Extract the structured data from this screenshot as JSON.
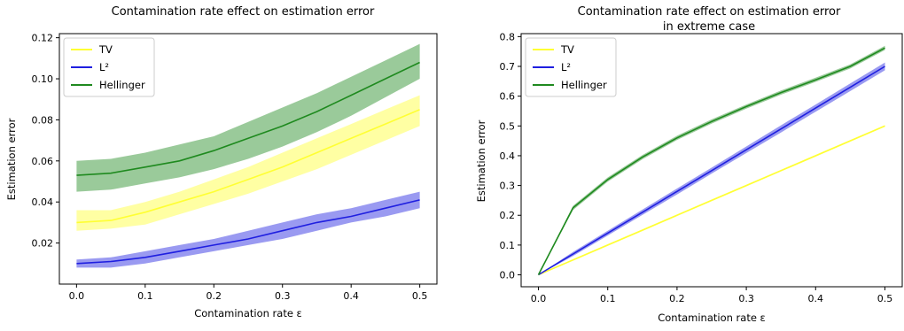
{
  "figure": {
    "background": "#ffffff",
    "colors": {
      "TV": "#ffff33",
      "L2": "#1f1fe0",
      "Hellinger": "#1f8a1f"
    }
  },
  "chart_data": [
    {
      "type": "line",
      "title": "Contamination rate effect on estimation error",
      "title_line2": "",
      "xlabel": "Contamination rate ε",
      "ylabel": "Estimation error",
      "xlim": [
        -0.025,
        0.525
      ],
      "ylim": [
        0.0,
        0.122
      ],
      "xticks": [
        0.0,
        0.1,
        0.2,
        0.3,
        0.4,
        0.5
      ],
      "xtick_labels": [
        "0.0",
        "0.1",
        "0.2",
        "0.3",
        "0.4",
        "0.5"
      ],
      "yticks": [
        0.02,
        0.04,
        0.06,
        0.08,
        0.1,
        0.12
      ],
      "ytick_labels": [
        "0.02",
        "0.04",
        "0.06",
        "0.08",
        "0.10",
        "0.12"
      ],
      "legend_position": "upper-left",
      "x": [
        0.0,
        0.05,
        0.1,
        0.15,
        0.2,
        0.25,
        0.3,
        0.35,
        0.4,
        0.45,
        0.5
      ],
      "series": [
        {
          "name": "TV",
          "color": "#ffff33",
          "values": [
            0.03,
            0.031,
            0.035,
            0.04,
            0.045,
            0.051,
            0.057,
            0.064,
            0.071,
            0.078,
            0.085
          ],
          "lower": [
            0.026,
            0.027,
            0.029,
            0.034,
            0.039,
            0.044,
            0.05,
            0.056,
            0.063,
            0.07,
            0.077
          ],
          "upper": [
            0.036,
            0.036,
            0.04,
            0.045,
            0.051,
            0.057,
            0.064,
            0.071,
            0.078,
            0.085,
            0.092
          ]
        },
        {
          "name": "L²",
          "color": "#1f1fe0",
          "values": [
            0.01,
            0.011,
            0.013,
            0.016,
            0.019,
            0.022,
            0.026,
            0.03,
            0.033,
            0.037,
            0.041
          ],
          "lower": [
            0.008,
            0.008,
            0.01,
            0.013,
            0.016,
            0.019,
            0.022,
            0.026,
            0.03,
            0.033,
            0.037
          ],
          "upper": [
            0.012,
            0.013,
            0.016,
            0.019,
            0.022,
            0.026,
            0.03,
            0.034,
            0.037,
            0.041,
            0.045
          ]
        },
        {
          "name": "Hellinger",
          "color": "#1f8a1f",
          "values": [
            0.053,
            0.054,
            0.057,
            0.06,
            0.065,
            0.071,
            0.077,
            0.084,
            0.092,
            0.1,
            0.108
          ],
          "lower": [
            0.045,
            0.046,
            0.049,
            0.052,
            0.056,
            0.061,
            0.067,
            0.074,
            0.082,
            0.091,
            0.1
          ],
          "upper": [
            0.06,
            0.061,
            0.064,
            0.068,
            0.072,
            0.079,
            0.086,
            0.093,
            0.101,
            0.109,
            0.117
          ]
        }
      ]
    },
    {
      "type": "line",
      "title": "Contamination rate effect on estimation error",
      "title_line2": "in extreme case",
      "xlabel": "Contamination rate ε",
      "ylabel": "Estimation error",
      "xlim": [
        -0.025,
        0.525
      ],
      "ylim": [
        -0.04,
        0.81
      ],
      "xticks": [
        0.0,
        0.1,
        0.2,
        0.3,
        0.4,
        0.5
      ],
      "xtick_labels": [
        "0.0",
        "0.1",
        "0.2",
        "0.3",
        "0.4",
        "0.5"
      ],
      "yticks": [
        0.0,
        0.1,
        0.2,
        0.3,
        0.4,
        0.5,
        0.6,
        0.7,
        0.8
      ],
      "ytick_labels": [
        "0.0",
        "0.1",
        "0.2",
        "0.3",
        "0.4",
        "0.5",
        "0.6",
        "0.7",
        "0.8"
      ],
      "legend_position": "upper-left",
      "x": [
        0.0,
        0.05,
        0.1,
        0.15,
        0.2,
        0.25,
        0.3,
        0.35,
        0.4,
        0.45,
        0.5
      ],
      "series": [
        {
          "name": "TV",
          "color": "#ffff33",
          "values": [
            0.0,
            0.05,
            0.1,
            0.15,
            0.2,
            0.25,
            0.3,
            0.35,
            0.4,
            0.45,
            0.5
          ],
          "lower": [
            0.0,
            0.047,
            0.097,
            0.147,
            0.197,
            0.247,
            0.297,
            0.347,
            0.397,
            0.447,
            0.497
          ],
          "upper": [
            0.0,
            0.053,
            0.103,
            0.153,
            0.203,
            0.253,
            0.303,
            0.353,
            0.403,
            0.453,
            0.503
          ]
        },
        {
          "name": "L²",
          "color": "#1f1fe0",
          "values": [
            0.0,
            0.07,
            0.14,
            0.21,
            0.28,
            0.35,
            0.42,
            0.49,
            0.56,
            0.63,
            0.7
          ],
          "lower": [
            0.0,
            0.063,
            0.132,
            0.201,
            0.27,
            0.34,
            0.409,
            0.478,
            0.548,
            0.617,
            0.687
          ],
          "upper": [
            0.0,
            0.077,
            0.148,
            0.219,
            0.29,
            0.36,
            0.431,
            0.502,
            0.572,
            0.643,
            0.713
          ]
        },
        {
          "name": "Hellinger",
          "color": "#1f8a1f",
          "values": [
            0.0,
            0.225,
            0.32,
            0.395,
            0.46,
            0.515,
            0.565,
            0.612,
            0.655,
            0.7,
            0.762
          ],
          "lower": [
            0.0,
            0.218,
            0.313,
            0.388,
            0.453,
            0.508,
            0.558,
            0.605,
            0.648,
            0.693,
            0.755
          ],
          "upper": [
            0.0,
            0.232,
            0.327,
            0.402,
            0.467,
            0.522,
            0.572,
            0.619,
            0.662,
            0.707,
            0.769
          ]
        }
      ]
    }
  ]
}
